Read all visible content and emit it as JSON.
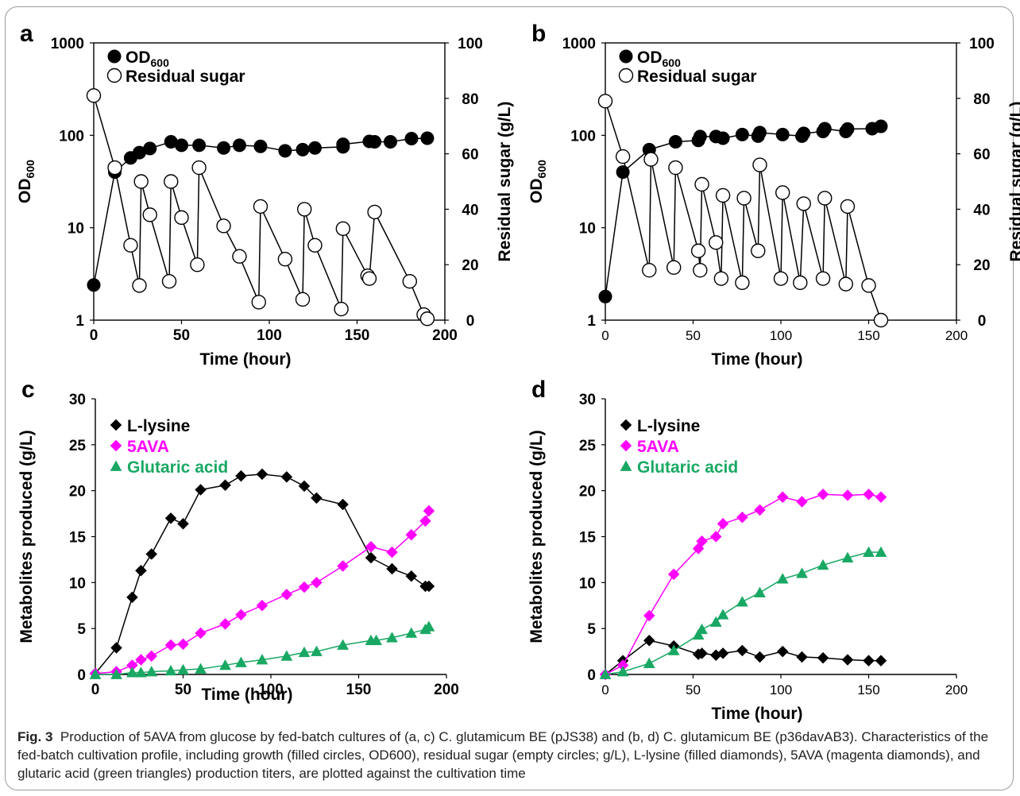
{
  "caption": {
    "fig_label": "Fig. 3",
    "text": "Production of 5AVA from glucose by fed-batch cultures of (a, c) C. glutamicum BE (pJS38) and (b, d) C. glutamicum BE (p36davAB3). Characteristics of the fed-batch cultivation profile, including growth (filled circles, OD600), residual sugar (empty circles; g/L), L-lysine (filled diamonds), 5AVA (magenta diamonds), and glutaric acid (green triangles) production titers, are plotted against the cultivation time"
  },
  "colors": {
    "lysine": "#000000",
    "ava": "#ff00ff",
    "glutaric": "#19a863"
  },
  "chart_data": [
    {
      "panel": "a",
      "type": "line",
      "xlabel": "Time (hour)",
      "ylabel": "OD600",
      "y2label": "Residual sugar (g/L)",
      "xlim": [
        0,
        200
      ],
      "xticks": [
        0,
        50,
        100,
        150,
        200
      ],
      "ylim": [
        1,
        1000
      ],
      "yscale": "log",
      "yticks": [
        1,
        10,
        100,
        1000
      ],
      "y2lim": [
        0,
        100
      ],
      "y2ticks": [
        0,
        20,
        40,
        60,
        80,
        100
      ],
      "legend": "top-left",
      "series": [
        {
          "name": "OD600",
          "axis": "left",
          "marker": "filled-circle",
          "x": [
            0,
            12,
            21,
            26,
            32,
            44,
            50,
            60,
            74,
            83,
            95,
            109,
            119,
            126,
            142,
            142,
            157,
            160,
            169,
            181,
            190
          ],
          "y": [
            2.4,
            40,
            57,
            65,
            72,
            85,
            78,
            78,
            73,
            78,
            76,
            68,
            70,
            73,
            75,
            80,
            86,
            85,
            85,
            92,
            93
          ]
        },
        {
          "name": "Residual sugar",
          "axis": "right",
          "marker": "open-circle",
          "x": [
            0,
            12,
            21,
            26,
            27,
            32,
            43,
            44,
            50,
            59,
            60,
            74,
            83,
            94,
            95,
            109,
            119,
            120,
            126,
            141,
            142,
            156,
            157,
            160,
            180,
            188,
            190
          ],
          "y": [
            81,
            55,
            27,
            12.5,
            50,
            38,
            14,
            50,
            37,
            20,
            55,
            34,
            23,
            6.5,
            41,
            22,
            7.5,
            40,
            27,
            4,
            33,
            16,
            15,
            39,
            14,
            2,
            0.5
          ]
        }
      ]
    },
    {
      "panel": "b",
      "type": "line",
      "xlabel": "Time (hour)",
      "ylabel": "OD600",
      "y2label": "Residual sugar (g/L)",
      "xlim": [
        0,
        200
      ],
      "xticks": [
        0,
        50,
        100,
        150,
        200
      ],
      "ylim": [
        1,
        1000
      ],
      "yscale": "log",
      "yticks": [
        1,
        10,
        100,
        1000
      ],
      "y2lim": [
        0,
        100
      ],
      "y2ticks": [
        0,
        20,
        40,
        60,
        80,
        100
      ],
      "legend": "top-left",
      "series": [
        {
          "name": "OD600",
          "axis": "left",
          "marker": "filled-circle",
          "x": [
            0,
            10,
            25,
            40,
            53,
            54,
            63,
            67,
            78,
            87,
            88,
            101,
            112,
            113,
            124,
            125,
            137,
            138,
            152,
            157
          ],
          "y": [
            1.8,
            40,
            70,
            85,
            88,
            97,
            97,
            93,
            102,
            98,
            107,
            102,
            98,
            105,
            110,
            118,
            110,
            117,
            118,
            125
          ]
        },
        {
          "name": "Residual sugar",
          "axis": "right",
          "marker": "open-circle",
          "x": [
            0,
            10,
            25,
            26,
            39,
            40,
            53,
            54,
            55,
            63,
            66,
            67,
            78,
            79,
            87,
            88,
            100,
            101,
            111,
            113,
            124,
            125,
            137,
            138,
            150,
            157
          ],
          "y": [
            79,
            59,
            18,
            58,
            19,
            55,
            25,
            18,
            49,
            28,
            15,
            45,
            13.5,
            44,
            25,
            56,
            15,
            46,
            13.5,
            42,
            15,
            44,
            13,
            41,
            12.5,
            0
          ]
        }
      ]
    },
    {
      "panel": "c",
      "type": "line",
      "xlabel": "Time (hour)",
      "ylabel": "Metabolites produced (g/L)",
      "xlim": [
        0,
        200
      ],
      "xticks": [
        0,
        50,
        100,
        150,
        200
      ],
      "ylim": [
        0,
        30
      ],
      "yticks": [
        0,
        5,
        10,
        15,
        20,
        25,
        30
      ],
      "legend": "top-left",
      "series": [
        {
          "name": "L-lysine",
          "color": "#000000",
          "marker": "diamond",
          "x": [
            0,
            12,
            21,
            26,
            32,
            43,
            50,
            60,
            74,
            83,
            95,
            109,
            119,
            126,
            141,
            157,
            169,
            180,
            188,
            190
          ],
          "y": [
            0.1,
            2.9,
            8.4,
            11.3,
            13.1,
            17,
            16.4,
            20.1,
            20.6,
            21.6,
            21.8,
            21.5,
            20.5,
            19.2,
            18.5,
            12.7,
            11.5,
            10.7,
            9.6,
            9.6
          ]
        },
        {
          "name": "5AVA",
          "color": "#ff00ff",
          "marker": "diamond",
          "x": [
            0,
            12,
            21,
            26,
            32,
            43,
            50,
            60,
            74,
            83,
            95,
            109,
            119,
            126,
            141,
            157,
            169,
            180,
            188,
            190
          ],
          "y": [
            0.1,
            0.3,
            1.0,
            1.6,
            2.0,
            3.2,
            3.3,
            4.5,
            5.5,
            6.5,
            7.5,
            8.7,
            9.5,
            10,
            11.8,
            13.9,
            13.3,
            15.2,
            16.7,
            17.8
          ]
        },
        {
          "name": "Glutaric acid",
          "color": "#19a863",
          "marker": "triangle",
          "x": [
            0,
            12,
            21,
            26,
            32,
            43,
            50,
            60,
            74,
            83,
            95,
            109,
            119,
            126,
            141,
            157,
            160,
            169,
            180,
            188,
            190
          ],
          "y": [
            0,
            0,
            0.2,
            0.2,
            0.3,
            0.4,
            0.5,
            0.6,
            1.0,
            1.3,
            1.6,
            2.0,
            2.4,
            2.5,
            3.2,
            3.7,
            3.7,
            4.0,
            4.5,
            4.9,
            5.2
          ]
        }
      ]
    },
    {
      "panel": "d",
      "type": "line",
      "xlabel": "Time (hour)",
      "ylabel": "Metabolites produced (g/L)",
      "xlim": [
        0,
        200
      ],
      "xticks": [
        0,
        50,
        100,
        150,
        200
      ],
      "ylim": [
        0,
        30
      ],
      "yticks": [
        0,
        5,
        10,
        15,
        20,
        25,
        30
      ],
      "legend": "top-left",
      "series": [
        {
          "name": "L-lysine",
          "color": "#000000",
          "marker": "diamond",
          "x": [
            0,
            10,
            25,
            39,
            53,
            55,
            63,
            67,
            78,
            88,
            101,
            112,
            124,
            138,
            150,
            157
          ],
          "y": [
            0,
            1.5,
            3.7,
            3.1,
            2.2,
            2.3,
            2.1,
            2.3,
            2.6,
            1.9,
            2.5,
            1.9,
            1.8,
            1.6,
            1.5,
            1.5
          ]
        },
        {
          "name": "5AVA",
          "color": "#ff00ff",
          "marker": "diamond",
          "x": [
            0,
            10,
            25,
            39,
            53,
            55,
            63,
            67,
            78,
            88,
            101,
            112,
            124,
            138,
            150,
            157
          ],
          "y": [
            0,
            1.0,
            6.4,
            10.9,
            13.7,
            14.5,
            15.0,
            16.4,
            17.1,
            17.9,
            19.3,
            18.8,
            19.6,
            19.5,
            19.6,
            19.3
          ]
        },
        {
          "name": "Glutaric acid",
          "color": "#19a863",
          "marker": "triangle",
          "x": [
            0,
            10,
            25,
            39,
            53,
            55,
            63,
            67,
            78,
            88,
            101,
            112,
            124,
            138,
            150,
            157
          ],
          "y": [
            0,
            0.3,
            1.2,
            2.6,
            4.3,
            4.9,
            5.7,
            6.5,
            7.9,
            8.9,
            10.4,
            11.0,
            11.9,
            12.7,
            13.3,
            13.3
          ]
        }
      ]
    }
  ]
}
